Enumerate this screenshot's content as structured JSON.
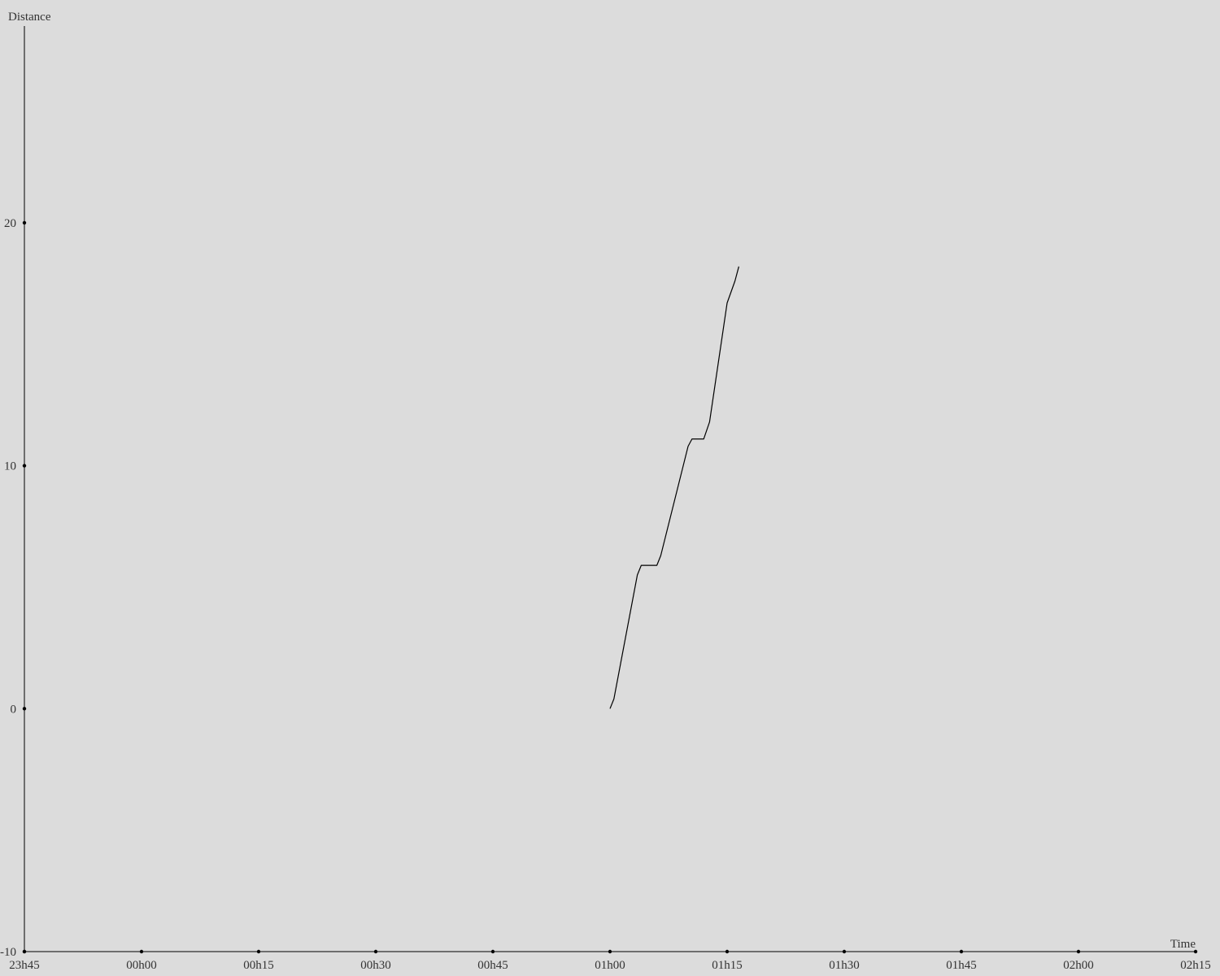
{
  "chart_data": {
    "type": "line",
    "title": "",
    "xlabel": "Time",
    "ylabel": "Distance",
    "x_ticks": [
      "23h45",
      "00h00",
      "00h15",
      "00h30",
      "00h45",
      "01h00",
      "01h15",
      "01h30",
      "01h45",
      "02h00",
      "02h15"
    ],
    "y_ticks": [
      "-10",
      "0",
      "10",
      "20"
    ],
    "xlim": [
      "23h45",
      "02h15"
    ],
    "ylim": [
      -10,
      28.1
    ],
    "grid": false,
    "colors": {
      "background": "#dcdcdc",
      "axis": "#000000",
      "line": "#000000",
      "text": "#333333"
    },
    "series": [
      {
        "x": [
          "01h00",
          "01h00.5",
          "01h03.5",
          "01h04",
          "01h06",
          "01h06.5",
          "01h10",
          "01h10.5",
          "01h12",
          "01h12.75",
          "01h15",
          "01h16",
          "01h16.5"
        ],
        "y": [
          0,
          0.4,
          5.5,
          5.9,
          5.9,
          6.3,
          10.8,
          11.1,
          11.1,
          11.8,
          16.7,
          17.6,
          18.2
        ]
      }
    ]
  }
}
